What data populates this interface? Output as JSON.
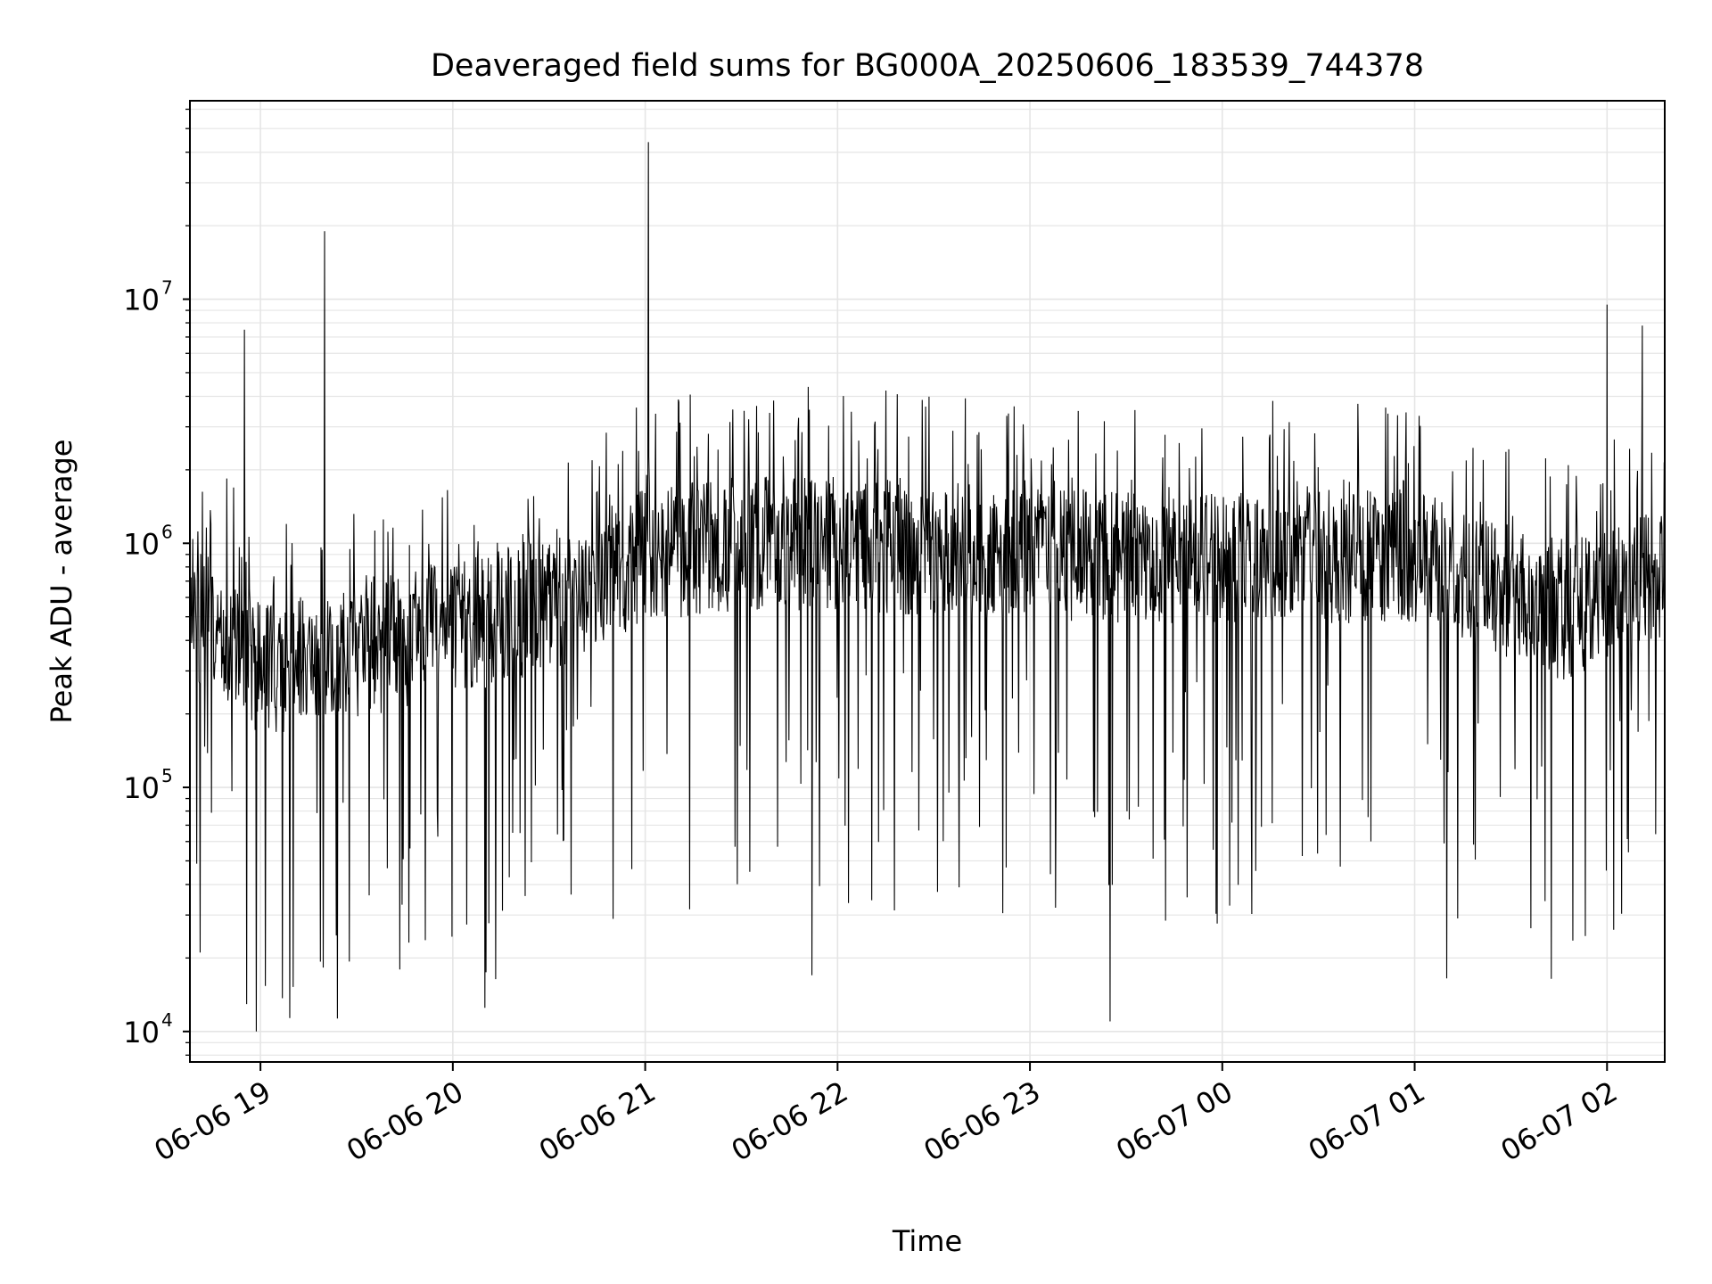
{
  "chart_data": {
    "type": "line",
    "title": "Deaveraged field sums for BG000A_20250606_183539_744378",
    "xlabel": "Time",
    "ylabel": "Peak ADU - average",
    "yscale": "log",
    "ylim": [
      7500,
      65000000
    ],
    "xlim": [
      "2025-06-06 18:38",
      "2025-06-07 02:18"
    ],
    "x_ticks": [
      "06-06 19",
      "06-06 20",
      "06-06 21",
      "06-06 22",
      "06-06 23",
      "06-07 00",
      "06-07 01",
      "06-07 02"
    ],
    "y_ticks": [
      {
        "base": "10",
        "exp": "4",
        "value": 10000
      },
      {
        "base": "10",
        "exp": "5",
        "value": 100000
      },
      {
        "base": "10",
        "exp": "6",
        "value": 1000000
      },
      {
        "base": "10",
        "exp": "7",
        "value": 10000000
      }
    ],
    "grid": true,
    "line_color": "#000000",
    "grid_color": "#e5e5e5",
    "series": [
      {
        "x_start": "2025-06-06 18:38",
        "x_end": "2025-06-07 02:18",
        "typical_level_by_hour": [
          {
            "x": "2025-06-06 18:45",
            "y": 500000
          },
          {
            "x": "2025-06-06 19:00",
            "y": 300000
          },
          {
            "x": "2025-06-06 19:30",
            "y": 350000
          },
          {
            "x": "2025-06-06 20:00",
            "y": 450000
          },
          {
            "x": "2025-06-06 20:30",
            "y": 550000
          },
          {
            "x": "2025-06-06 21:00",
            "y": 900000
          },
          {
            "x": "2025-06-06 21:30",
            "y": 1000000
          },
          {
            "x": "2025-06-06 22:00",
            "y": 1000000
          },
          {
            "x": "2025-06-06 23:00",
            "y": 900000
          },
          {
            "x": "2025-06-07 00:00",
            "y": 850000
          },
          {
            "x": "2025-06-07 01:00",
            "y": 900000
          },
          {
            "x": "2025-06-07 01:45",
            "y": 500000
          },
          {
            "x": "2025-06-07 02:10",
            "y": 700000
          }
        ],
        "peaks": [
          {
            "x": "2025-06-06 18:55",
            "y": 7500000
          },
          {
            "x": "2025-06-06 19:20",
            "y": 19000000
          },
          {
            "x": "2025-06-06 21:01",
            "y": 44000000
          },
          {
            "x": "2025-06-07 02:00",
            "y": 9500000
          },
          {
            "x": "2025-06-07 02:11",
            "y": 7800000
          }
        ],
        "troughs": [
          {
            "x": "2025-06-06 20:10",
            "y": 12500
          },
          {
            "x": "2025-06-06 23:25",
            "y": 11000
          },
          {
            "x": "2025-06-07 01:10",
            "y": 16500
          },
          {
            "x": "2025-06-06 21:52",
            "y": 17000
          }
        ]
      }
    ]
  }
}
